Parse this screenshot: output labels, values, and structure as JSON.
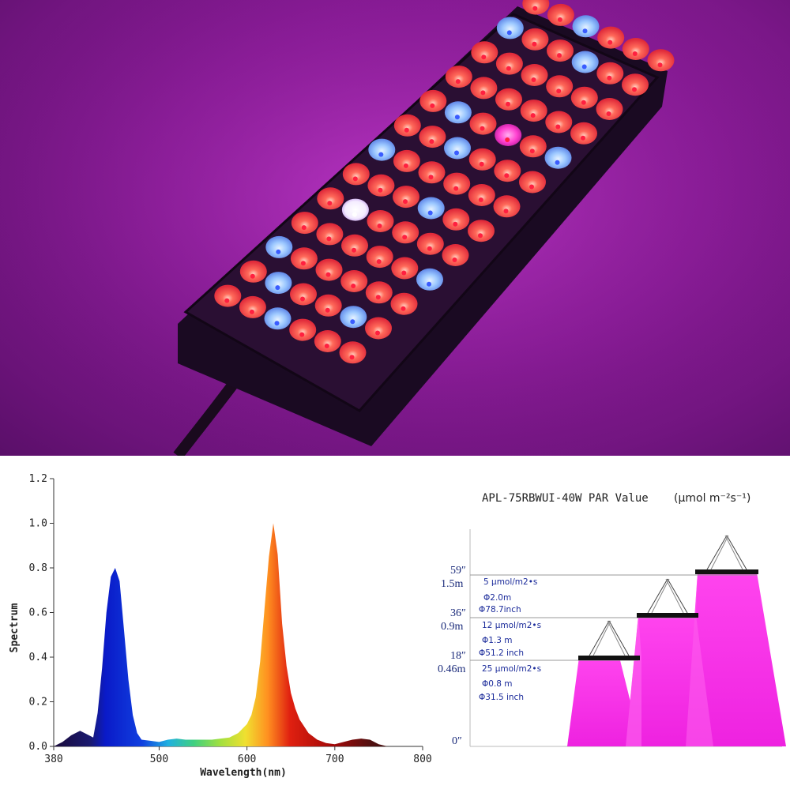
{
  "photo": {
    "led_colors": {
      "red": "#ff3b3b",
      "blue": "#9cc8ff",
      "white": "#ffffff",
      "purple": "#ff40d0"
    },
    "background": "#9c22ab"
  },
  "chart_data": {
    "type": "area",
    "xlabel": "Wavelength(nm)",
    "ylabel": "Spectrum",
    "xlim": [
      380,
      800
    ],
    "ylim": [
      0,
      1.2
    ],
    "x_ticks": [
      "380",
      "500",
      "600",
      "700",
      "800"
    ],
    "y_ticks": [
      "0.0",
      "0.2",
      "0.4",
      "0.6",
      "0.8",
      "1.0",
      "1.2"
    ],
    "x": [
      380,
      390,
      400,
      410,
      420,
      425,
      430,
      435,
      440,
      445,
      450,
      455,
      460,
      465,
      470,
      475,
      480,
      490,
      500,
      510,
      520,
      530,
      540,
      550,
      560,
      570,
      580,
      590,
      600,
      605,
      610,
      615,
      620,
      625,
      630,
      635,
      640,
      645,
      650,
      655,
      660,
      670,
      680,
      690,
      700,
      710,
      720,
      730,
      740,
      750,
      760,
      770,
      780,
      790,
      800
    ],
    "values": [
      0.0,
      0.02,
      0.05,
      0.07,
      0.05,
      0.04,
      0.15,
      0.35,
      0.6,
      0.76,
      0.8,
      0.74,
      0.52,
      0.3,
      0.14,
      0.06,
      0.03,
      0.025,
      0.02,
      0.03,
      0.035,
      0.03,
      0.03,
      0.03,
      0.03,
      0.035,
      0.04,
      0.06,
      0.1,
      0.14,
      0.22,
      0.38,
      0.62,
      0.85,
      1.0,
      0.86,
      0.55,
      0.36,
      0.24,
      0.17,
      0.12,
      0.06,
      0.03,
      0.015,
      0.01,
      0.02,
      0.03,
      0.035,
      0.03,
      0.01,
      0.0,
      0.0,
      0.0,
      0.0,
      0.0
    ]
  },
  "par": {
    "title": "APL-75RBWUI-40W PAR Value",
    "unit": "(µmol m⁻²s⁻¹)",
    "zero_label": "0″",
    "levels": [
      {
        "inch": "59″",
        "meter": "1.5m",
        "par": "5 μmol/m2•s",
        "dia_m": "Φ2.0m",
        "dia_in": "Φ78.7inch"
      },
      {
        "inch": "36″",
        "meter": "0.9m",
        "par": "12 μmol/m2•s",
        "dia_m": "Φ1.3 m",
        "dia_in": "Φ51.2 inch"
      },
      {
        "inch": "18″",
        "meter": "0.46m",
        "par": "25 μmol/m2•s",
        "dia_m": "Φ0.8 m",
        "dia_in": "Φ31.5 inch"
      }
    ],
    "beam_color": "#ff33ee"
  }
}
